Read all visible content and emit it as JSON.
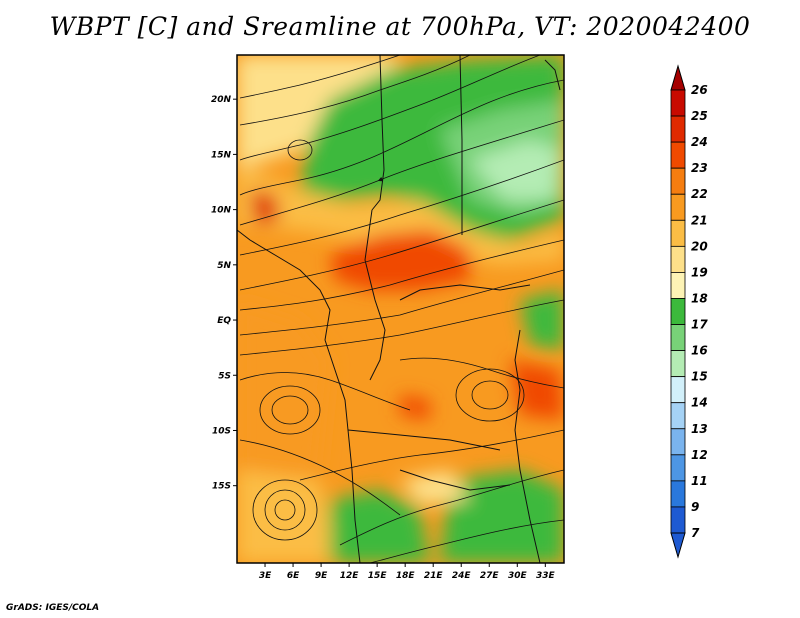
{
  "title": "WBPT [C] and Sreamline at 700hPa, VT: 2020042400",
  "credit": "GrADS: IGES/COLA",
  "map": {
    "projection": "lat-lon",
    "lon_range": [
      0,
      35
    ],
    "lat_range": [
      -22,
      24
    ],
    "latitude_labels": [
      {
        "lat": 20,
        "label": "20N"
      },
      {
        "lat": 15,
        "label": "15N"
      },
      {
        "lat": 10,
        "label": "10N"
      },
      {
        "lat": 5,
        "label": "5N"
      },
      {
        "lat": 0,
        "label": "EQ"
      },
      {
        "lat": -5,
        "label": "5S"
      },
      {
        "lat": -10,
        "label": "10S"
      },
      {
        "lat": -15,
        "label": "15S"
      }
    ],
    "longitude_labels": [
      {
        "lon": 3,
        "label": "3E"
      },
      {
        "lon": 6,
        "label": "6E"
      },
      {
        "lon": 9,
        "label": "9E"
      },
      {
        "lon": 12,
        "label": "12E"
      },
      {
        "lon": 15,
        "label": "15E"
      },
      {
        "lon": 18,
        "label": "18E"
      },
      {
        "lon": 21,
        "label": "21E"
      },
      {
        "lon": 24,
        "label": "24E"
      },
      {
        "lon": 27,
        "label": "27E"
      },
      {
        "lon": 30,
        "label": "30E"
      },
      {
        "lon": 33,
        "label": "33E"
      }
    ]
  },
  "colorbar": {
    "levels": [
      {
        "label": "26",
        "color": "#a50000"
      },
      {
        "label": "25",
        "color": "#c80a00"
      },
      {
        "label": "24",
        "color": "#e02a00"
      },
      {
        "label": "23",
        "color": "#f04a00"
      },
      {
        "label": "22",
        "color": "#f57d10"
      },
      {
        "label": "21",
        "color": "#f89a20"
      },
      {
        "label": "20",
        "color": "#fbbd45"
      },
      {
        "label": "19",
        "color": "#fde08a"
      },
      {
        "label": "18",
        "color": "#fdf3b5"
      },
      {
        "label": "17",
        "color": "#3cb93c"
      },
      {
        "label": "16",
        "color": "#78d278"
      },
      {
        "label": "15",
        "color": "#b4ecb4"
      },
      {
        "label": "14",
        "color": "#d2f0fa"
      },
      {
        "label": "13",
        "color": "#a5d2f5"
      },
      {
        "label": "12",
        "color": "#7ab4ee"
      },
      {
        "label": "11",
        "color": "#4d96e4"
      },
      {
        "label": "9",
        "color": "#2a78dc"
      },
      {
        "label": "7",
        "color": "#1e5ad2"
      }
    ],
    "top_arrow_color": "#a50000",
    "bottom_arrow_color": "#1e5ad2"
  }
}
